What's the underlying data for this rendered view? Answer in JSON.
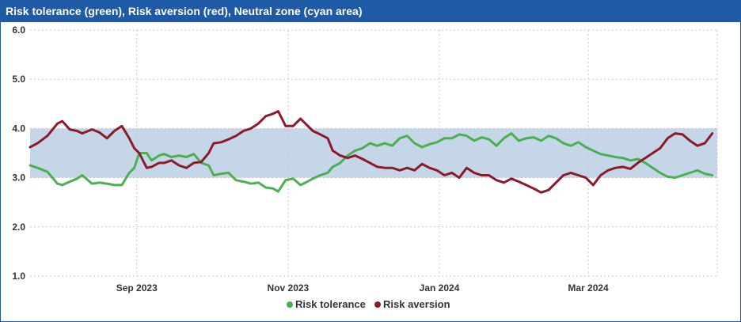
{
  "header": {
    "title": "Risk tolerance (green), Risk aversion (red), Neutral zone (cyan area)"
  },
  "chart_data": {
    "type": "line",
    "title": "Risk tolerance (green), Risk aversion (red), Neutral zone (cyan area)",
    "ylim": [
      1.0,
      6.0
    ],
    "y_ticks": [
      "6.0",
      "5.0",
      "4.0",
      "3.0",
      "2.0",
      "1.0"
    ],
    "y_tick_values": [
      6.0,
      5.0,
      4.0,
      3.0,
      2.0,
      1.0
    ],
    "xlim": [
      "2023-07-20",
      "2024-04-22"
    ],
    "x_ticks": [
      {
        "label": "Sep 2023",
        "date": "2023-09-01"
      },
      {
        "label": "Nov 2023",
        "date": "2023-11-01"
      },
      {
        "label": "Jan 2024",
        "date": "2024-01-01"
      },
      {
        "label": "Mar 2024",
        "date": "2024-03-01"
      }
    ],
    "grid": true,
    "legend": "bottom-center",
    "neutral_zone": {
      "lower": 3.0,
      "upper": 4.0,
      "color": "#c5d6e8"
    },
    "series": [
      {
        "name": "Risk tolerance",
        "color": "#4caf50",
        "x": [
          "2023-07-20",
          "2023-07-23",
          "2023-07-27",
          "2023-07-31",
          "2023-08-02",
          "2023-08-05",
          "2023-08-08",
          "2023-08-10",
          "2023-08-14",
          "2023-08-17",
          "2023-08-20",
          "2023-08-23",
          "2023-08-26",
          "2023-08-29",
          "2023-08-31",
          "2023-09-02",
          "2023-09-05",
          "2023-09-07",
          "2023-09-10",
          "2023-09-12",
          "2023-09-15",
          "2023-09-18",
          "2023-09-21",
          "2023-09-24",
          "2023-09-27",
          "2023-09-30",
          "2023-10-02",
          "2023-10-05",
          "2023-10-08",
          "2023-10-11",
          "2023-10-14",
          "2023-10-17",
          "2023-10-20",
          "2023-10-23",
          "2023-10-26",
          "2023-10-28",
          "2023-10-31",
          "2023-11-03",
          "2023-11-06",
          "2023-11-08",
          "2023-11-11",
          "2023-11-14",
          "2023-11-17",
          "2023-11-19",
          "2023-11-22",
          "2023-11-25",
          "2023-11-28",
          "2023-12-01",
          "2023-12-04",
          "2023-12-07",
          "2023-12-10",
          "2023-12-13",
          "2023-12-16",
          "2023-12-19",
          "2023-12-22",
          "2023-12-25",
          "2023-12-28",
          "2023-12-31",
          "2024-01-03",
          "2024-01-06",
          "2024-01-09",
          "2024-01-12",
          "2024-01-15",
          "2024-01-18",
          "2024-01-21",
          "2024-01-24",
          "2024-01-27",
          "2024-01-30",
          "2024-02-02",
          "2024-02-05",
          "2024-02-08",
          "2024-02-11",
          "2024-02-14",
          "2024-02-17",
          "2024-02-20",
          "2024-02-23",
          "2024-02-26",
          "2024-02-29",
          "2024-03-03",
          "2024-03-06",
          "2024-03-09",
          "2024-03-12",
          "2024-03-15",
          "2024-03-18",
          "2024-03-21",
          "2024-03-24",
          "2024-03-27",
          "2024-03-30",
          "2024-04-02",
          "2024-04-05",
          "2024-04-08",
          "2024-04-11",
          "2024-04-14",
          "2024-04-17",
          "2024-04-20"
        ],
        "values": [
          3.25,
          3.2,
          3.12,
          2.88,
          2.85,
          2.92,
          2.98,
          3.05,
          2.88,
          2.9,
          2.88,
          2.85,
          2.85,
          3.1,
          3.2,
          3.5,
          3.5,
          3.35,
          3.45,
          3.48,
          3.42,
          3.45,
          3.42,
          3.48,
          3.3,
          3.25,
          3.05,
          3.08,
          3.1,
          2.95,
          2.92,
          2.88,
          2.9,
          2.8,
          2.78,
          2.72,
          2.95,
          2.98,
          2.85,
          2.9,
          2.98,
          3.05,
          3.1,
          3.22,
          3.3,
          3.45,
          3.55,
          3.6,
          3.7,
          3.65,
          3.7,
          3.65,
          3.8,
          3.85,
          3.7,
          3.62,
          3.68,
          3.72,
          3.8,
          3.8,
          3.88,
          3.85,
          3.75,
          3.82,
          3.78,
          3.65,
          3.8,
          3.9,
          3.75,
          3.8,
          3.82,
          3.75,
          3.85,
          3.8,
          3.7,
          3.65,
          3.72,
          3.62,
          3.55,
          3.48,
          3.45,
          3.42,
          3.4,
          3.35,
          3.38,
          3.3,
          3.2,
          3.1,
          3.02,
          3.0,
          3.05,
          3.1,
          3.15,
          3.08,
          3.05
        ]
      },
      {
        "name": "Risk aversion",
        "color": "#8b1a2b",
        "x": [
          "2023-07-20",
          "2023-07-23",
          "2023-07-27",
          "2023-07-31",
          "2023-08-02",
          "2023-08-05",
          "2023-08-08",
          "2023-08-10",
          "2023-08-14",
          "2023-08-17",
          "2023-08-20",
          "2023-08-23",
          "2023-08-26",
          "2023-08-29",
          "2023-08-31",
          "2023-09-02",
          "2023-09-05",
          "2023-09-07",
          "2023-09-10",
          "2023-09-12",
          "2023-09-15",
          "2023-09-18",
          "2023-09-21",
          "2023-09-24",
          "2023-09-27",
          "2023-09-30",
          "2023-10-02",
          "2023-10-05",
          "2023-10-08",
          "2023-10-11",
          "2023-10-14",
          "2023-10-17",
          "2023-10-20",
          "2023-10-23",
          "2023-10-26",
          "2023-10-28",
          "2023-10-31",
          "2023-11-03",
          "2023-11-06",
          "2023-11-08",
          "2023-11-11",
          "2023-11-14",
          "2023-11-17",
          "2023-11-19",
          "2023-11-22",
          "2023-11-25",
          "2023-11-28",
          "2023-12-01",
          "2023-12-04",
          "2023-12-07",
          "2023-12-10",
          "2023-12-13",
          "2023-12-16",
          "2023-12-19",
          "2023-12-22",
          "2023-12-25",
          "2023-12-28",
          "2023-12-31",
          "2024-01-03",
          "2024-01-06",
          "2024-01-09",
          "2024-01-12",
          "2024-01-15",
          "2024-01-18",
          "2024-01-21",
          "2024-01-24",
          "2024-01-27",
          "2024-01-30",
          "2024-02-02",
          "2024-02-05",
          "2024-02-08",
          "2024-02-11",
          "2024-02-14",
          "2024-02-17",
          "2024-02-20",
          "2024-02-23",
          "2024-02-26",
          "2024-02-29",
          "2024-03-03",
          "2024-03-06",
          "2024-03-09",
          "2024-03-12",
          "2024-03-15",
          "2024-03-18",
          "2024-03-21",
          "2024-03-24",
          "2024-03-27",
          "2024-03-30",
          "2024-04-02",
          "2024-04-05",
          "2024-04-08",
          "2024-04-11",
          "2024-04-14",
          "2024-04-17",
          "2024-04-20"
        ],
        "values": [
          3.62,
          3.7,
          3.85,
          4.1,
          4.15,
          3.98,
          3.95,
          3.9,
          3.98,
          3.92,
          3.8,
          3.95,
          4.05,
          3.8,
          3.6,
          3.5,
          3.2,
          3.22,
          3.3,
          3.3,
          3.35,
          3.25,
          3.2,
          3.3,
          3.32,
          3.5,
          3.7,
          3.72,
          3.78,
          3.85,
          3.95,
          4.0,
          4.1,
          4.25,
          4.3,
          4.35,
          4.05,
          4.05,
          4.2,
          4.1,
          3.95,
          3.88,
          3.8,
          3.55,
          3.45,
          3.4,
          3.45,
          3.38,
          3.3,
          3.22,
          3.2,
          3.2,
          3.15,
          3.2,
          3.15,
          3.28,
          3.2,
          3.15,
          3.05,
          3.1,
          3.0,
          3.2,
          3.1,
          3.05,
          3.05,
          2.95,
          2.9,
          2.98,
          2.92,
          2.85,
          2.78,
          2.7,
          2.75,
          2.9,
          3.05,
          3.1,
          3.05,
          3.0,
          2.85,
          3.05,
          3.15,
          3.2,
          3.22,
          3.18,
          3.3,
          3.4,
          3.5,
          3.6,
          3.8,
          3.9,
          3.88,
          3.75,
          3.65,
          3.7,
          3.9
        ]
      }
    ]
  }
}
